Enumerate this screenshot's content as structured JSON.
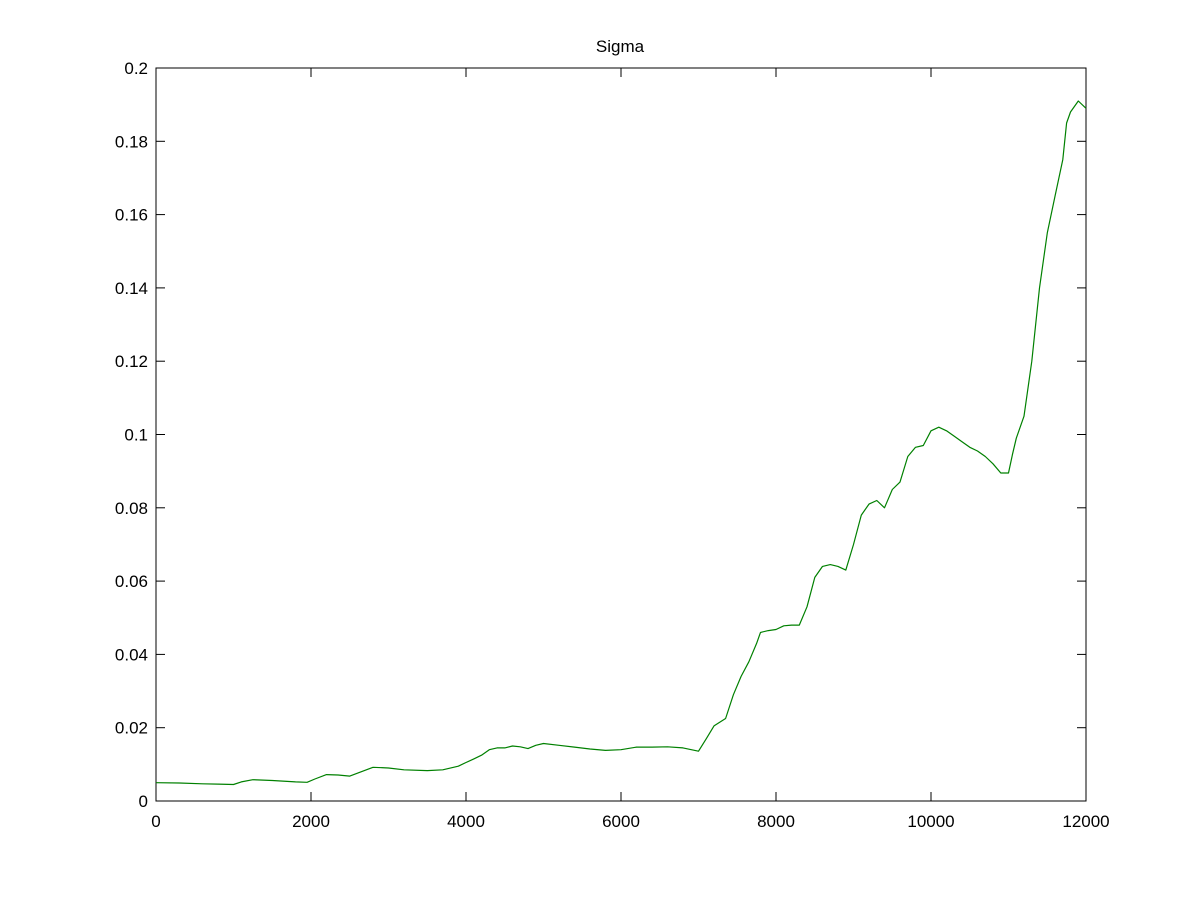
{
  "chart_data": {
    "type": "line",
    "title": "Sigma",
    "xlabel": "",
    "ylabel": "",
    "xlim": [
      0,
      12000
    ],
    "ylim": [
      0,
      0.2
    ],
    "xticks": [
      0,
      2000,
      4000,
      6000,
      8000,
      10000,
      12000
    ],
    "yticks": [
      0,
      0.02,
      0.04,
      0.06,
      0.08,
      0.1,
      0.12,
      0.14,
      0.16,
      0.18,
      0.2
    ],
    "xtick_labels": [
      "0",
      "2000",
      "4000",
      "6000",
      "8000",
      "10000",
      "12000"
    ],
    "ytick_labels": [
      "0",
      "0.02",
      "0.04",
      "0.06",
      "0.08",
      "0.1",
      "0.12",
      "0.14",
      "0.16",
      "0.18",
      "0.2"
    ],
    "grid": false,
    "series": [
      {
        "color": "#008000",
        "x": [
          0,
          300,
          600,
          800,
          1000,
          1100,
          1250,
          1500,
          1800,
          1950,
          2050,
          2200,
          2350,
          2500,
          2650,
          2800,
          3000,
          3200,
          3500,
          3700,
          3900,
          4000,
          4100,
          4200,
          4300,
          4400,
          4500,
          4600,
          4700,
          4800,
          4900,
          5000,
          5200,
          5400,
          5600,
          5800,
          6000,
          6200,
          6400,
          6600,
          6800,
          7000,
          7100,
          7200,
          7350,
          7450,
          7550,
          7650,
          7750,
          7800,
          7900,
          8000,
          8100,
          8200,
          8300,
          8400,
          8500,
          8600,
          8700,
          8800,
          8900,
          9000,
          9100,
          9200,
          9300,
          9400,
          9500,
          9600,
          9700,
          9800,
          9900,
          10000,
          10100,
          10200,
          10300,
          10400,
          10500,
          10600,
          10700,
          10800,
          10900,
          11000,
          11050,
          11100,
          11200,
          11300,
          11400,
          11500,
          11600,
          11700,
          11750,
          11800,
          11900,
          12000
        ],
        "y": [
          0.005,
          0.0049,
          0.0047,
          0.0046,
          0.0045,
          0.0052,
          0.0058,
          0.0056,
          0.0052,
          0.0051,
          0.006,
          0.0072,
          0.0071,
          0.0068,
          0.008,
          0.0092,
          0.009,
          0.0085,
          0.0083,
          0.0085,
          0.0095,
          0.0105,
          0.0115,
          0.0125,
          0.014,
          0.0145,
          0.0145,
          0.015,
          0.0148,
          0.0143,
          0.0152,
          0.0157,
          0.0152,
          0.0147,
          0.0142,
          0.0138,
          0.014,
          0.0147,
          0.0147,
          0.0148,
          0.0145,
          0.0136,
          0.017,
          0.0205,
          0.0225,
          0.029,
          0.034,
          0.038,
          0.043,
          0.046,
          0.0465,
          0.0468,
          0.0478,
          0.048,
          0.048,
          0.053,
          0.061,
          0.064,
          0.0645,
          0.064,
          0.063,
          0.07,
          0.078,
          0.081,
          0.082,
          0.08,
          0.085,
          0.087,
          0.094,
          0.0965,
          0.097,
          0.101,
          0.102,
          0.101,
          0.0995,
          0.098,
          0.0965,
          0.0955,
          0.094,
          0.092,
          0.0895,
          0.0895,
          0.0945,
          0.099,
          0.105,
          0.12,
          0.14,
          0.155,
          0.165,
          0.175,
          0.185,
          0.188,
          0.191,
          0.189
        ]
      }
    ]
  }
}
